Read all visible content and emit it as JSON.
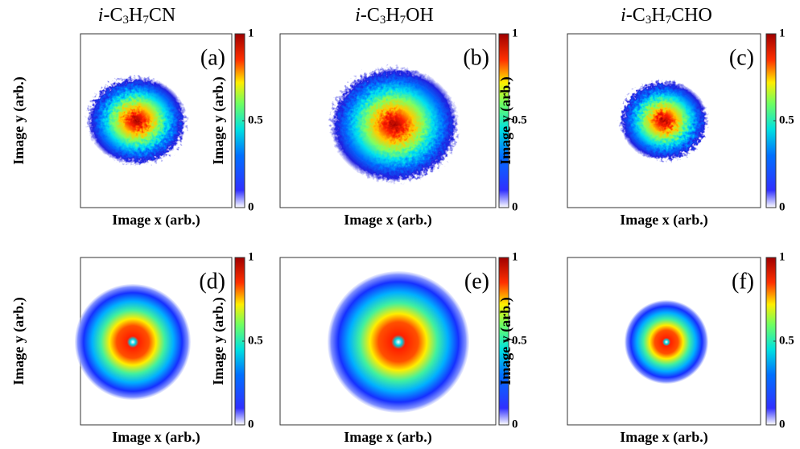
{
  "columns": [
    "i-C3H7CN",
    "i-C3H7OH",
    "i-C3H7CHO"
  ],
  "clim": [
    0,
    1
  ],
  "panels": [
    {
      "label": "(a)",
      "x_label": "Image x (arb.)",
      "y_label": "Image y (arb.)",
      "colorbar_ticks": [
        0,
        0.5,
        1
      ]
    },
    {
      "label": "(b)",
      "x_label": "Image x (arb.)",
      "y_label": "Image y (arb.)",
      "colorbar_ticks": [
        0,
        0.5,
        1
      ]
    },
    {
      "label": "(c)",
      "x_label": "Image x (arb.)",
      "y_label": "Image y (arb.)",
      "colorbar_ticks": [
        0,
        0.5,
        1
      ]
    },
    {
      "label": "(d)",
      "x_label": "Image x (arb.)",
      "y_label": "Image y (arb.)",
      "colorbar_ticks": [
        0,
        0.5,
        1
      ]
    },
    {
      "label": "(e)",
      "x_label": "Image x (arb.)",
      "y_label": "Image y (arb.)",
      "colorbar_ticks": [
        0,
        0.5,
        1
      ]
    },
    {
      "label": "(f)",
      "x_label": "Image x (arb.)",
      "y_label": "Image y (arb.)",
      "colorbar_ticks": [
        0,
        0.5,
        1
      ]
    }
  ]
}
